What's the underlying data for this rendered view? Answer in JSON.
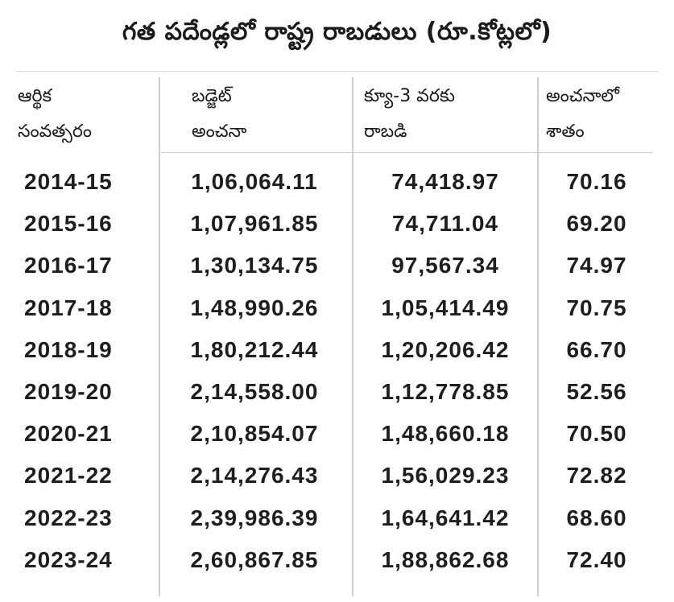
{
  "title": "గత పదేండ్లలో రాష్ట్ర రాబడులు (రూ.కోట్లలో)",
  "headers": {
    "year": [
      "ఆర్థిక",
      "సంవత్సరం"
    ],
    "budget": [
      "బడ్జెట్",
      "అంచనా"
    ],
    "revenue": [
      "క్యూ-3 వరకు",
      "రాబడి"
    ],
    "percent": [
      "అంచనాలో",
      "శాతం"
    ]
  },
  "rows": [
    {
      "year": "2014-15",
      "budget": "1,06,064.11",
      "revenue": "74,418.97",
      "percent": "70.16"
    },
    {
      "year": "2015-16",
      "budget": "1,07,961.85",
      "revenue": "74,711.04",
      "percent": "69.20"
    },
    {
      "year": "2016-17",
      "budget": "1,30,134.75",
      "revenue": "97,567.34",
      "percent": "74.97"
    },
    {
      "year": "2017-18",
      "budget": "1,48,990.26",
      "revenue": "1,05,414.49",
      "percent": "70.75"
    },
    {
      "year": "2018-19",
      "budget": "1,80,212.44",
      "revenue": "1,20,206.42",
      "percent": "66.70"
    },
    {
      "year": "2019-20",
      "budget": "2,14,558.00",
      "revenue": "1,12,778.85",
      "percent": "52.56"
    },
    {
      "year": "2020-21",
      "budget": "2,10,854.07",
      "revenue": "1,48,660.18",
      "percent": "70.50"
    },
    {
      "year": "2021-22",
      "budget": "2,14,276.43",
      "revenue": "1,56,029.23",
      "percent": "72.82"
    },
    {
      "year": "2022-23",
      "budget": "2,39,986.39",
      "revenue": "1,64,641.42",
      "percent": "68.60"
    },
    {
      "year": "2023-24",
      "budget": "2,60,867.85",
      "revenue": "1,88,862.68",
      "percent": "72.40"
    }
  ]
}
